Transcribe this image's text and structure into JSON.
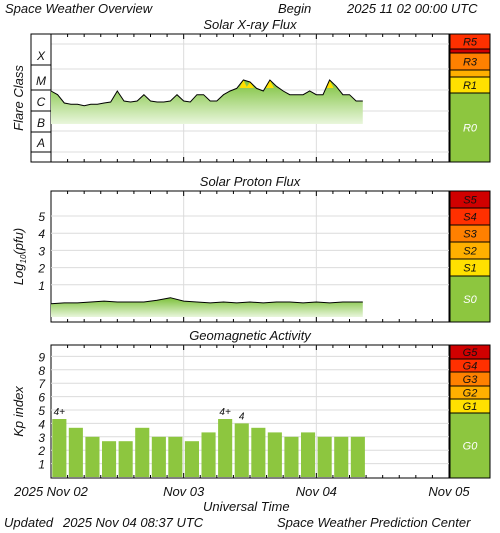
{
  "header": {
    "title": "Space Weather Overview",
    "begin_label": "Begin",
    "begin_value": "2025 11 02 00:00 UTC"
  },
  "footer": {
    "updated_label": "Updated",
    "updated_value": "2025 Nov 04 08:37 UTC",
    "org": "Space Weather Prediction Center"
  },
  "x_axis": {
    "label": "Universal Time",
    "ticks": [
      "2025 Nov 02",
      "Nov 03",
      "Nov 04",
      "Nov 05"
    ]
  },
  "colors": {
    "green": "#8dc63f",
    "yellow": "#ffe000",
    "light_orange": "#ffb000",
    "orange": "#ff8000",
    "red_orange": "#ff3000",
    "red": "#d00000",
    "grid": "#dcdcdc"
  },
  "chart_data": [
    {
      "type": "area",
      "title": "Solar X-ray Flux",
      "ylabel": "Flare Class",
      "y_scale": "log",
      "yticks": [
        "X",
        "M",
        "C",
        "B",
        "A"
      ],
      "x_unit": "days since 2025 Nov 02 00:00 UTC",
      "xlim": [
        0,
        3
      ],
      "ylim": [
        "A",
        "X"
      ],
      "series": [
        {
          "name": "",
          "x": [
            0.0,
            0.05,
            0.1,
            0.15,
            0.2,
            0.25,
            0.3,
            0.35,
            0.4,
            0.45,
            0.5,
            0.55,
            0.6,
            0.65,
            0.7,
            0.75,
            0.8,
            0.85,
            0.9,
            0.95,
            1.0,
            1.05,
            1.1,
            1.15,
            1.2,
            1.25,
            1.3,
            1.35,
            1.4,
            1.45,
            1.5,
            1.55,
            1.6,
            1.65,
            1.7,
            1.75,
            1.8,
            1.85,
            1.9,
            1.95,
            2.0,
            2.05,
            2.1,
            2.15,
            2.2,
            2.25,
            2.3,
            2.35
          ],
          "y": [
            "C3",
            "C2",
            "B8",
            "B7",
            "B7",
            "B6",
            "B7",
            "B7",
            "B8",
            "B9",
            "C3",
            "C1",
            "B9",
            "C1",
            "C2",
            "C1",
            "B9",
            "B9",
            "C1",
            "C2",
            "C1",
            "B9",
            "C2",
            "C2",
            "C1",
            "C1",
            "C2",
            "C3",
            "C4",
            "M1",
            "C8",
            "C4",
            "C3",
            "M1",
            "C5",
            "C3",
            "C2",
            "C2",
            "C2",
            "C3",
            "C2",
            "C2",
            "M1",
            "C5",
            "C2",
            "C2",
            "C1",
            "C1"
          ]
        }
      ],
      "scale_labels": [
        "R5",
        "R3",
        "R1",
        "R0"
      ]
    },
    {
      "type": "area",
      "title": "Solar Proton Flux",
      "ylabel": "Log10(pfu)",
      "ylabel_main": "Log",
      "ylabel_sub": "10",
      "ylabel_tail": "(pfu)",
      "yticks": [
        "5",
        "4",
        "3",
        "2",
        "1"
      ],
      "x_unit": "days since 2025 Nov 02 00:00 UTC",
      "xlim": [
        0,
        3
      ],
      "ylim": [
        -0.8,
        5.8
      ],
      "series": [
        {
          "name": "",
          "x": [
            0.0,
            0.1,
            0.2,
            0.3,
            0.4,
            0.5,
            0.6,
            0.7,
            0.8,
            0.9,
            1.0,
            1.1,
            1.2,
            1.3,
            1.4,
            1.5,
            1.6,
            1.7,
            1.8,
            1.9,
            2.0,
            2.1,
            2.2,
            2.3,
            2.35
          ],
          "y": [
            -0.1,
            -0.05,
            -0.05,
            0.0,
            0.05,
            0.0,
            0.0,
            0.0,
            0.1,
            0.25,
            0.05,
            0.0,
            -0.05,
            0.0,
            -0.05,
            0.0,
            -0.05,
            0.0,
            0.0,
            -0.05,
            0.0,
            -0.05,
            0.0,
            0.0,
            0.0
          ]
        }
      ],
      "scale_labels": [
        "S5",
        "S4",
        "S3",
        "S2",
        "S1",
        "S0"
      ]
    },
    {
      "type": "bar",
      "title": "Geomagnetic Activity",
      "ylabel": "Kp index",
      "yticks": [
        "9",
        "8",
        "7",
        "6",
        "5",
        "4",
        "3",
        "2",
        "1"
      ],
      "x_unit": "days since 2025 Nov 02 00:00 UTC",
      "xlim": [
        0,
        3
      ],
      "ylim": [
        0,
        10
      ],
      "x": [
        0.0625,
        0.1875,
        0.3125,
        0.4375,
        0.5625,
        0.6875,
        0.8125,
        0.9375,
        1.0625,
        1.1875,
        1.3125,
        1.4375,
        1.5625,
        1.6875,
        1.8125,
        1.9375,
        2.0625,
        2.1875,
        2.3125
      ],
      "values": [
        4.33,
        3.67,
        3.0,
        2.67,
        2.67,
        3.67,
        3.0,
        3.0,
        2.67,
        3.33,
        4.33,
        4.0,
        3.67,
        3.33,
        3.0,
        3.33,
        3.0,
        3.0,
        3.0
      ],
      "data_labels": [
        {
          "x": 0.0625,
          "text": "4+"
        },
        {
          "x": 1.3125,
          "text": "4+"
        },
        {
          "x": 1.4375,
          "text": "4"
        }
      ],
      "scale_labels": [
        "G5",
        "G4",
        "G3",
        "G2",
        "G1",
        "G0"
      ]
    }
  ]
}
